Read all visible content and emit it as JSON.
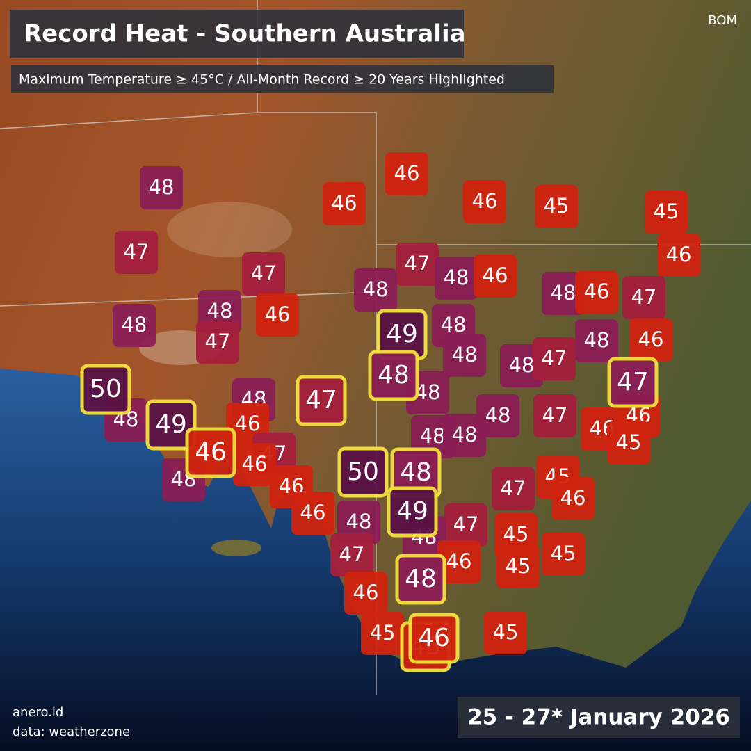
{
  "header": {
    "title": "Record Heat - Southern Australia",
    "subtitle": "Maximum Temperature ≥ 45°C / All-Month Record ≥ 20 Years Highlighted",
    "source": "BOM"
  },
  "markers": [
    {
      "value": 48,
      "color": "#8a1d55",
      "record": false
    },
    {
      "value": 46,
      "color": "#d0230f",
      "record": false
    },
    {
      "value": 46,
      "color": "#d0230f",
      "record": false
    },
    {
      "value": 46,
      "color": "#d0230f",
      "record": false
    },
    {
      "value": 45,
      "color": "#d0230f",
      "record": false
    },
    {
      "value": 45,
      "color": "#d0230f",
      "record": false
    },
    {
      "value": 46,
      "color": "#d0230f",
      "record": false
    },
    {
      "value": 47,
      "color": "#a41f3c",
      "record": false
    },
    {
      "value": 47,
      "color": "#a41f3c",
      "record": false
    },
    {
      "value": 47,
      "color": "#a41f3c",
      "record": false
    },
    {
      "value": 48,
      "color": "#8a1d55",
      "record": false
    },
    {
      "value": 48,
      "color": "#8a1d55",
      "record": false
    },
    {
      "value": 46,
      "color": "#d0230f",
      "record": false
    },
    {
      "value": 48,
      "color": "#8a1d55",
      "record": false
    },
    {
      "value": 46,
      "color": "#d0230f",
      "record": false
    },
    {
      "value": 47,
      "color": "#a41f3c",
      "record": false
    },
    {
      "value": 48,
      "color": "#8a1d55",
      "record": false
    },
    {
      "value": 46,
      "color": "#d0230f",
      "record": false
    },
    {
      "value": 48,
      "color": "#8a1d55",
      "record": false
    },
    {
      "value": 47,
      "color": "#a41f3c",
      "record": false
    },
    {
      "value": 48,
      "color": "#8a1d55",
      "record": false
    },
    {
      "value": 49,
      "color": "#5a1245",
      "record": true
    },
    {
      "value": 48,
      "color": "#8a1d55",
      "record": false
    },
    {
      "value": 46,
      "color": "#d0230f",
      "record": false
    },
    {
      "value": 48,
      "color": "#8a1d55",
      "record": false
    },
    {
      "value": 48,
      "color": "#8a1d55",
      "record": false
    },
    {
      "value": 47,
      "color": "#a41f3c",
      "record": false
    },
    {
      "value": 48,
      "color": "#8a1d55",
      "record": true
    },
    {
      "value": 48,
      "color": "#8a1d55",
      "record": false
    },
    {
      "value": 47,
      "color": "#8a1d55",
      "record": true
    },
    {
      "value": 50,
      "color": "#5a1245",
      "record": true
    },
    {
      "value": 48,
      "color": "#8a1d55",
      "record": false
    },
    {
      "value": 47,
      "color": "#a41f3c",
      "record": true
    },
    {
      "value": 48,
      "color": "#8a1d55",
      "record": false
    },
    {
      "value": 49,
      "color": "#5a1245",
      "record": true
    },
    {
      "value": 46,
      "color": "#d0230f",
      "record": false
    },
    {
      "value": 48,
      "color": "#8a1d55",
      "record": false
    },
    {
      "value": 47,
      "color": "#a41f3c",
      "record": false
    },
    {
      "value": 48,
      "color": "#8a1d55",
      "record": false
    },
    {
      "value": 48,
      "color": "#8a1d55",
      "record": false
    },
    {
      "value": 46,
      "color": "#d0230f",
      "record": false
    },
    {
      "value": 46,
      "color": "#d0230f",
      "record": false
    },
    {
      "value": 45,
      "color": "#d0230f",
      "record": false
    },
    {
      "value": 46,
      "color": "#d0230f",
      "record": true
    },
    {
      "value": 47,
      "color": "#a41f3c",
      "record": false
    },
    {
      "value": 46,
      "color": "#d0230f",
      "record": false
    },
    {
      "value": 48,
      "color": "#8a1d55",
      "record": false
    },
    {
      "value": 50,
      "color": "#5a1245",
      "record": true
    },
    {
      "value": 48,
      "color": "#8a1d55",
      "record": true
    },
    {
      "value": 47,
      "color": "#a41f3c",
      "record": false
    },
    {
      "value": 45,
      "color": "#d0230f",
      "record": false
    },
    {
      "value": 46,
      "color": "#d0230f",
      "record": false
    },
    {
      "value": 46,
      "color": "#d0230f",
      "record": false
    },
    {
      "value": 46,
      "color": "#d0230f",
      "record": false
    },
    {
      "value": 48,
      "color": "#8a1d55",
      "record": false
    },
    {
      "value": 49,
      "color": "#5a1245",
      "record": true
    },
    {
      "value": 47,
      "color": "#a41f3c",
      "record": false
    },
    {
      "value": 45,
      "color": "#d0230f",
      "record": false
    },
    {
      "value": 48,
      "color": "#8a1d55",
      "record": false
    },
    {
      "value": 47,
      "color": "#a41f3c",
      "record": false
    },
    {
      "value": 46,
      "color": "#d0230f",
      "record": false
    },
    {
      "value": 45,
      "color": "#d0230f",
      "record": false
    },
    {
      "value": 45,
      "color": "#d0230f",
      "record": false
    },
    {
      "value": 48,
      "color": "#8a1d55",
      "record": true
    },
    {
      "value": 46,
      "color": "#d0230f",
      "record": false
    },
    {
      "value": 45,
      "color": "#d0230f",
      "record": false
    },
    {
      "value": 45,
      "color": "#d0230f",
      "record": false
    },
    {
      "value": 45,
      "color": "#d0230f",
      "record": true
    },
    {
      "value": 46,
      "color": "#d0230f",
      "record": true
    }
  ],
  "footer": {
    "credit": "anero.id",
    "data_credit": "data: weatherzone",
    "date": "25 - 27* January 2026"
  }
}
